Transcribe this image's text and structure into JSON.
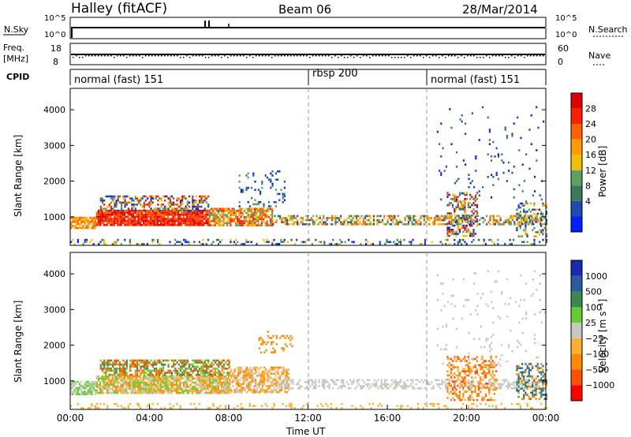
{
  "header": {
    "station": "Halley (fitACF)",
    "beam": "Beam 06",
    "date": "28/Mar/2014"
  },
  "noise_panel": {
    "left_label": "N.Sky",
    "left_ticks": [
      "10^5",
      "10^0"
    ],
    "right_label": "N.Search",
    "right_ticks": [
      "10^5",
      "10^0"
    ]
  },
  "freq_panel": {
    "left_label": "Freq.",
    "left_unit": "[MHz]",
    "left_ticks": [
      "18",
      "8"
    ],
    "right_label": "Nave",
    "right_ticks": [
      "60",
      "0"
    ]
  },
  "cpid_panel": {
    "label": "CPID",
    "segments": [
      {
        "name": "normal (fast) 151",
        "start_h": 0,
        "end_h": 12
      },
      {
        "name": "rbsp 200",
        "start_h": 12,
        "end_h": 18
      },
      {
        "name": "normal (fast) 151",
        "start_h": 18,
        "end_h": 24
      }
    ]
  },
  "colors": {
    "power": [
      "#0020ff",
      "#1e4bb0",
      "#3a7a5a",
      "#5aa060",
      "#f0c000",
      "#ff9a00",
      "#ff6000",
      "#ff2000",
      "#e00000"
    ],
    "velocity": [
      "#ff0000",
      "#ff5000",
      "#ff8a00",
      "#ffb030",
      "#c8c8c0",
      "#66cc33",
      "#3a8a50",
      "#2a5aa0",
      "#1a2ab0"
    ],
    "noise": "#cfcfcf"
  },
  "chart_data": [
    {
      "type": "heatmap",
      "title": "Power",
      "xlabel": "",
      "ylabel": "Slant Range [km]",
      "xlim": [
        0,
        24
      ],
      "ylim": [
        200,
        4600
      ],
      "yticks": [
        "1000",
        "2000",
        "3000",
        "4000"
      ],
      "colorbar": {
        "label": "Power [dB]",
        "ticks": [
          "4",
          "8",
          "12",
          "16",
          "20",
          "24",
          "28"
        ]
      },
      "regions": [
        {
          "x": [
            0,
            10.5
          ],
          "y": [
            700,
            1200
          ],
          "value": "high"
        },
        {
          "x": [
            1.3,
            6.8
          ],
          "y": [
            900,
            1500
          ],
          "value": "high"
        },
        {
          "x": [
            10,
            24
          ],
          "y": [
            750,
            1100
          ],
          "value": "medium"
        },
        {
          "x": [
            19,
            20.5
          ],
          "y": [
            500,
            1700
          ],
          "value": "mixed"
        },
        {
          "x": [
            22.5,
            24
          ],
          "y": [
            500,
            1400
          ],
          "value": "low"
        }
      ]
    },
    {
      "type": "heatmap",
      "title": "Velocity",
      "xlabel": "Time UT",
      "ylabel": "Slant Range [km]",
      "xlim": [
        0,
        24
      ],
      "ylim": [
        200,
        4600
      ],
      "xticks": [
        "00:00",
        "04:00",
        "08:00",
        "12:00",
        "16:00",
        "20:00",
        "00:00"
      ],
      "yticks": [
        "1000",
        "2000",
        "3000",
        "4000"
      ],
      "colorbar": {
        "label": "Velocity [m s⁻¹]",
        "ticks": [
          "1000",
          "500",
          "100",
          "25",
          "−25",
          "−100",
          "−500",
          "−1000"
        ]
      }
    }
  ]
}
